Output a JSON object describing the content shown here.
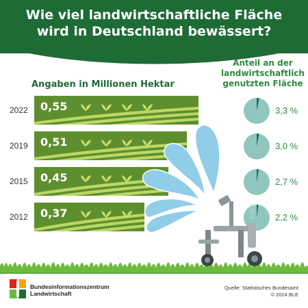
{
  "header": {
    "title_line1": "Wie viel landwirtschaftliche Fläche",
    "title_line2": "wird in Deutschland bewässert?"
  },
  "subtitle_left": "Angaben in Millionen Hektar",
  "subtitle_right_line1": "Anteil an der",
  "subtitle_right_line2": "landwirtschaftlich",
  "subtitle_right_line3": "genutzten Fläche",
  "chart_data": {
    "type": "bar",
    "orientation": "horizontal",
    "categories": [
      "2022",
      "2019",
      "2015",
      "2012"
    ],
    "series": [
      {
        "values": [
          0.55,
          0.51,
          0.45,
          0.37
        ]
      }
    ],
    "value_labels": [
      "0,55",
      "0,51",
      "0,45",
      "0,37"
    ],
    "share_percent": [
      3.3,
      3.0,
      2.7,
      2.2
    ],
    "share_labels": [
      "3,3 %",
      "3,0 %",
      "2,7 %",
      "2,2 %"
    ],
    "bar_color": "#5e8f2f",
    "pie_color": "#8fc6be",
    "pie_slice_color": "#1e6b6b"
  },
  "watermark": "© BLE",
  "footer": {
    "logo_line1": "Bundesinformationszentrum",
    "logo_line2": "Landwirtschaft",
    "source_line1": "Quelle: Statistisches Bundesamt",
    "source_line2": "© 2024 BLE"
  },
  "colors": {
    "header_green": "#1e6b36",
    "text_green": "#2d8a3e",
    "water_blue": "#8fcde8"
  }
}
